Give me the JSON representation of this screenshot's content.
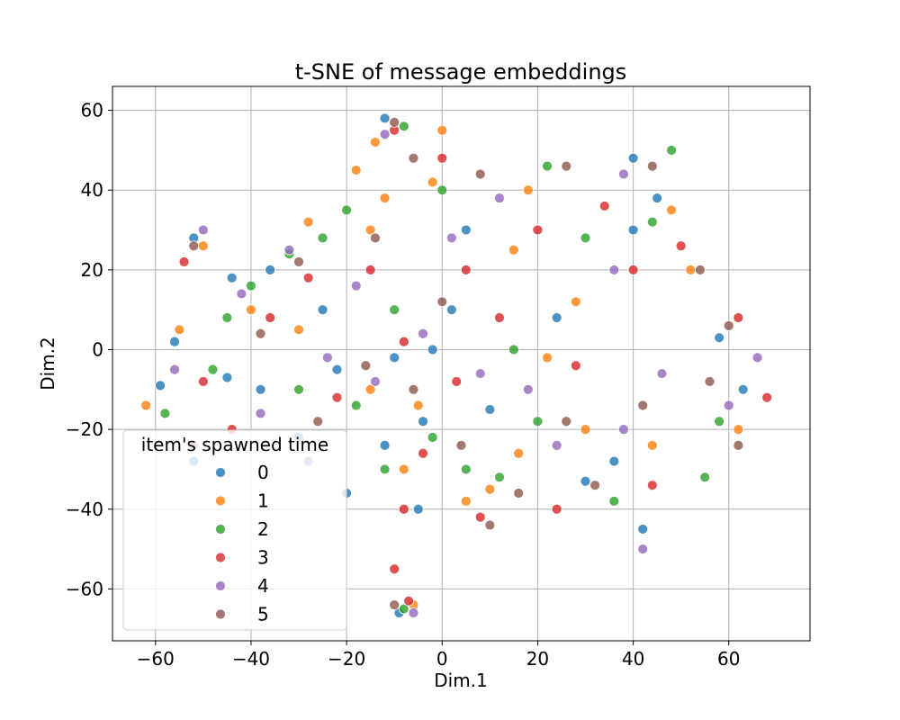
{
  "chart_data": {
    "type": "scatter",
    "title": "t-SNE of message embeddings",
    "xlabel": "Dim.1",
    "ylabel": "Dim.2",
    "xlim": [
      -69,
      77
    ],
    "ylim": [
      -73,
      66
    ],
    "xticks": [
      -60,
      -40,
      -20,
      0,
      20,
      40,
      60
    ],
    "yticks": [
      -60,
      -40,
      -20,
      0,
      20,
      40,
      60
    ],
    "xtick_labels": [
      "−60",
      "−40",
      "−20",
      "0",
      "20",
      "40",
      "60"
    ],
    "ytick_labels": [
      "−60",
      "−40",
      "−20",
      "0",
      "20",
      "40",
      "60"
    ],
    "grid": true,
    "legend": {
      "title": "item's spawned time",
      "placement": "lower-left",
      "entries": [
        "0",
        "1",
        "2",
        "3",
        "4",
        "5"
      ]
    },
    "colors": [
      "#1f77b4",
      "#ff7f0e",
      "#2ca02c",
      "#d62728",
      "#9467bd",
      "#8c564b"
    ],
    "series": [
      {
        "name": "0",
        "points": [
          [
            -12,
            58
          ],
          [
            -52,
            28
          ],
          [
            -36,
            20
          ],
          [
            -44,
            18
          ],
          [
            -25,
            10
          ],
          [
            -59,
            -9
          ],
          [
            -45,
            -7
          ],
          [
            -30,
            -22
          ],
          [
            -12,
            -24
          ],
          [
            -4,
            -18
          ],
          [
            -10,
            -2
          ],
          [
            2,
            10
          ],
          [
            10,
            -15
          ],
          [
            24,
            8
          ],
          [
            40,
            48
          ],
          [
            45,
            38
          ],
          [
            40,
            30
          ],
          [
            36,
            -28
          ],
          [
            42,
            -45
          ],
          [
            63,
            -10
          ],
          [
            58,
            3
          ],
          [
            -5,
            -40
          ],
          [
            -20,
            -36
          ],
          [
            -2,
            0
          ],
          [
            30,
            -33
          ],
          [
            -52,
            -28
          ],
          [
            -38,
            -10
          ],
          [
            -56,
            2
          ],
          [
            -22,
            -5
          ],
          [
            5,
            30
          ],
          [
            -9,
            -66
          ]
        ]
      },
      {
        "name": "1",
        "points": [
          [
            -14,
            52
          ],
          [
            -18,
            45
          ],
          [
            0,
            55
          ],
          [
            -50,
            26
          ],
          [
            -28,
            32
          ],
          [
            -15,
            30
          ],
          [
            -40,
            10
          ],
          [
            -55,
            5
          ],
          [
            15,
            25
          ],
          [
            22,
            -2
          ],
          [
            44,
            -24
          ],
          [
            52,
            20
          ],
          [
            62,
            -20
          ],
          [
            16,
            -26
          ],
          [
            -8,
            -30
          ],
          [
            -30,
            5
          ],
          [
            5,
            -38
          ],
          [
            30,
            -20
          ],
          [
            48,
            35
          ],
          [
            18,
            40
          ],
          [
            -12,
            38
          ],
          [
            -5,
            -14
          ],
          [
            -62,
            -14
          ],
          [
            -15,
            -10
          ],
          [
            -2,
            42
          ],
          [
            28,
            12
          ],
          [
            10,
            -35
          ],
          [
            -6,
            -64
          ]
        ]
      },
      {
        "name": "2",
        "points": [
          [
            -8,
            56
          ],
          [
            -32,
            24
          ],
          [
            -40,
            16
          ],
          [
            -48,
            -5
          ],
          [
            -58,
            -16
          ],
          [
            -30,
            -10
          ],
          [
            -18,
            -14
          ],
          [
            -2,
            -22
          ],
          [
            -12,
            -30
          ],
          [
            12,
            -32
          ],
          [
            30,
            28
          ],
          [
            44,
            32
          ],
          [
            48,
            50
          ],
          [
            20,
            -18
          ],
          [
            36,
            -38
          ],
          [
            55,
            -32
          ],
          [
            58,
            -18
          ],
          [
            -25,
            28
          ],
          [
            15,
            0
          ],
          [
            -10,
            10
          ],
          [
            22,
            46
          ],
          [
            0,
            40
          ],
          [
            -45,
            8
          ],
          [
            -20,
            35
          ],
          [
            5,
            -30
          ],
          [
            -8,
            -65
          ]
        ]
      },
      {
        "name": "3",
        "points": [
          [
            -10,
            55
          ],
          [
            -54,
            22
          ],
          [
            -28,
            18
          ],
          [
            -36,
            8
          ],
          [
            -22,
            -12
          ],
          [
            -8,
            -40
          ],
          [
            -4,
            -26
          ],
          [
            3,
            -8
          ],
          [
            -8,
            2
          ],
          [
            5,
            20
          ],
          [
            20,
            30
          ],
          [
            34,
            36
          ],
          [
            40,
            20
          ],
          [
            50,
            26
          ],
          [
            62,
            8
          ],
          [
            68,
            -12
          ],
          [
            44,
            -34
          ],
          [
            24,
            -40
          ],
          [
            8,
            -42
          ],
          [
            -10,
            -55
          ],
          [
            -50,
            -8
          ],
          [
            -44,
            -20
          ],
          [
            -15,
            20
          ],
          [
            0,
            48
          ],
          [
            28,
            -4
          ],
          [
            12,
            8
          ],
          [
            -7,
            -63
          ]
        ]
      },
      {
        "name": "4",
        "points": [
          [
            -12,
            54
          ],
          [
            -50,
            30
          ],
          [
            -32,
            25
          ],
          [
            -42,
            14
          ],
          [
            -56,
            -5
          ],
          [
            -38,
            -16
          ],
          [
            -24,
            -2
          ],
          [
            -14,
            -8
          ],
          [
            -4,
            4
          ],
          [
            8,
            -6
          ],
          [
            24,
            -24
          ],
          [
            38,
            -20
          ],
          [
            46,
            -6
          ],
          [
            60,
            -14
          ],
          [
            66,
            -2
          ],
          [
            38,
            44
          ],
          [
            36,
            20
          ],
          [
            12,
            38
          ],
          [
            -18,
            16
          ],
          [
            -28,
            -28
          ],
          [
            2,
            28
          ],
          [
            18,
            -10
          ],
          [
            42,
            -50
          ],
          [
            -6,
            -66
          ]
        ]
      },
      {
        "name": "5",
        "points": [
          [
            -10,
            57
          ],
          [
            -52,
            26
          ],
          [
            -30,
            22
          ],
          [
            -38,
            4
          ],
          [
            -52,
            -24
          ],
          [
            -26,
            -18
          ],
          [
            -16,
            -4
          ],
          [
            -6,
            -10
          ],
          [
            4,
            -24
          ],
          [
            16,
            -36
          ],
          [
            26,
            -18
          ],
          [
            42,
            -14
          ],
          [
            56,
            -8
          ],
          [
            62,
            -24
          ],
          [
            54,
            20
          ],
          [
            60,
            6
          ],
          [
            44,
            46
          ],
          [
            26,
            46
          ],
          [
            8,
            44
          ],
          [
            -6,
            48
          ],
          [
            -14,
            28
          ],
          [
            0,
            12
          ],
          [
            10,
            -44
          ],
          [
            32,
            -34
          ],
          [
            -10,
            -64
          ]
        ]
      }
    ]
  }
}
